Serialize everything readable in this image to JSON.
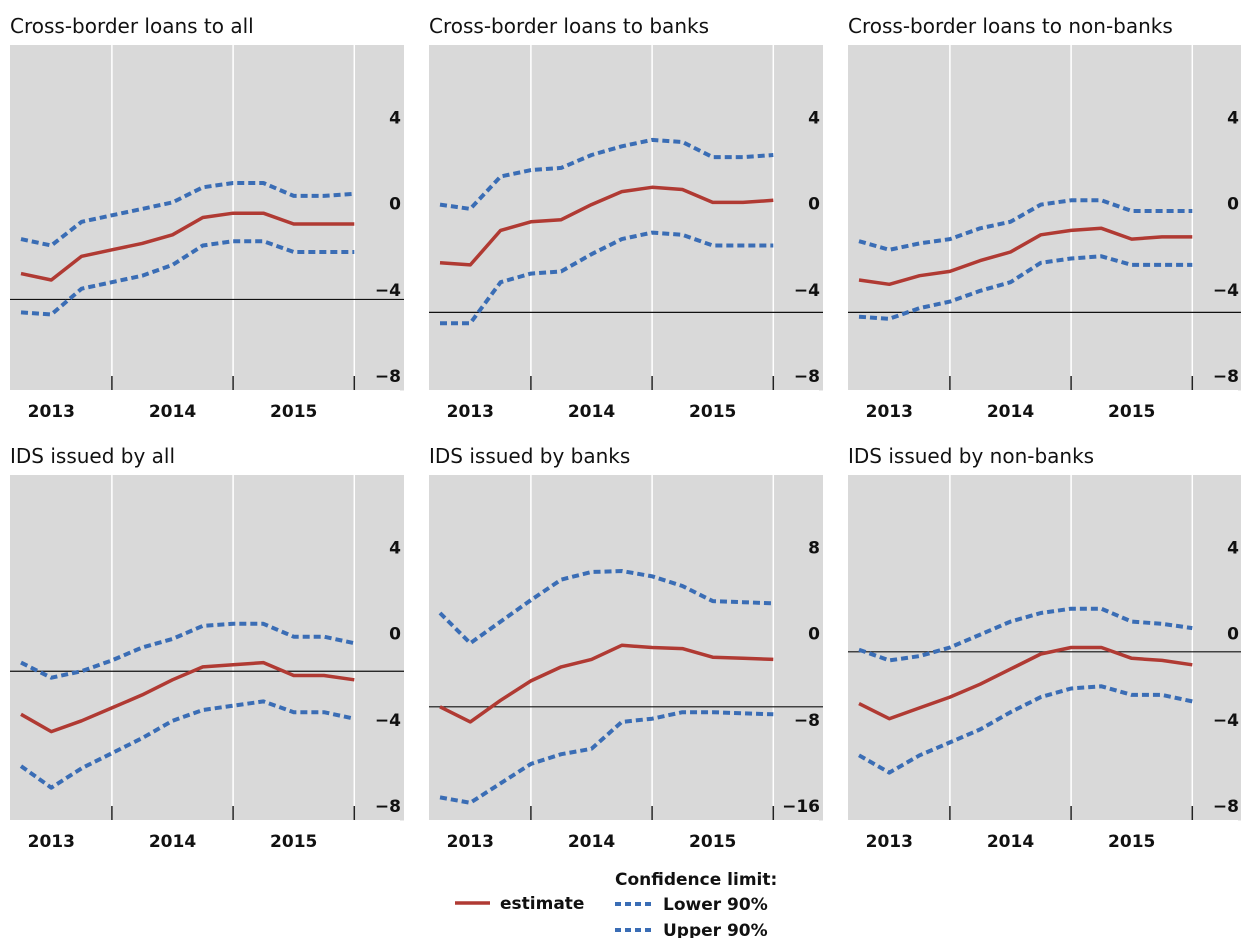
{
  "chart_data": [
    {
      "type": "line",
      "title": "Cross-border loans to all",
      "categories": [
        null,
        "2013",
        null,
        null,
        null,
        "2014",
        null,
        null,
        null,
        "2015",
        null,
        null
      ],
      "ylim": [
        -8,
        8
      ],
      "yticks": [
        {
          "value": -8,
          "label": "−8"
        },
        {
          "value": -4,
          "label": "−4"
        },
        0,
        4
      ],
      "reference_line": -3.8,
      "series": [
        {
          "name": "estimate",
          "color": "#b03a33",
          "values": [
            -2.6,
            -2.9,
            -1.8,
            -1.5,
            -1.2,
            -0.8,
            0,
            0.2,
            0.2,
            -0.3,
            -0.3,
            -0.3
          ]
        },
        {
          "name": "Lower 90%",
          "color": "#3a6db5",
          "values": [
            -4.4,
            -4.5,
            -3.3,
            -3.0,
            -2.7,
            -2.2,
            -1.3,
            -1.1,
            -1.1,
            -1.6,
            -1.6,
            -1.6
          ]
        },
        {
          "name": "Upper 90%",
          "color": "#3a6db5",
          "values": [
            -1.0,
            -1.3,
            -0.2,
            0.1,
            0.4,
            0.7,
            1.4,
            1.6,
            1.6,
            1.0,
            1.0,
            1.1
          ]
        }
      ]
    },
    {
      "type": "line",
      "title": "Cross-border loans to banks",
      "categories": [
        null,
        "2013",
        null,
        null,
        null,
        "2014",
        null,
        null,
        null,
        "2015",
        null,
        null
      ],
      "ylim": [
        -8,
        8
      ],
      "yticks": [
        {
          "value": -8,
          "label": "−8"
        },
        {
          "value": -4,
          "label": "−4"
        },
        0,
        4
      ],
      "reference_line": -4.4,
      "series": [
        {
          "name": "estimate",
          "color": "#b03a33",
          "values": [
            -2.1,
            -2.2,
            -0.6,
            -0.2,
            -0.1,
            0.6,
            1.2,
            1.4,
            1.3,
            0.7,
            0.7,
            0.8
          ]
        },
        {
          "name": "Lower 90%",
          "color": "#3a6db5",
          "values": [
            -4.9,
            -4.9,
            -3.0,
            -2.6,
            -2.5,
            -1.7,
            -1.0,
            -0.7,
            -0.8,
            -1.3,
            -1.3,
            -1.3
          ]
        },
        {
          "name": "Upper 90%",
          "color": "#3a6db5",
          "values": [
            0.6,
            0.4,
            1.9,
            2.2,
            2.3,
            2.9,
            3.3,
            3.6,
            3.5,
            2.8,
            2.8,
            2.9
          ]
        }
      ]
    },
    {
      "type": "line",
      "title": "Cross-border loans to non-banks",
      "categories": [
        null,
        "2013",
        null,
        null,
        null,
        "2014",
        null,
        null,
        null,
        "2015",
        null,
        null
      ],
      "ylim": [
        -8,
        8
      ],
      "yticks": [
        {
          "value": -8,
          "label": "−8"
        },
        {
          "value": -4,
          "label": "−4"
        },
        0,
        4
      ],
      "reference_line": -4.4,
      "series": [
        {
          "name": "estimate",
          "color": "#b03a33",
          "values": [
            -2.9,
            -3.1,
            -2.7,
            -2.5,
            -2.0,
            -1.6,
            -0.8,
            -0.6,
            -0.5,
            -1.0,
            -0.9,
            -0.9
          ]
        },
        {
          "name": "Lower 90%",
          "color": "#3a6db5",
          "values": [
            -4.6,
            -4.7,
            -4.2,
            -3.9,
            -3.4,
            -3.0,
            -2.1,
            -1.9,
            -1.8,
            -2.2,
            -2.2,
            -2.2
          ]
        },
        {
          "name": "Upper 90%",
          "color": "#3a6db5",
          "values": [
            -1.1,
            -1.5,
            -1.2,
            -1.0,
            -0.5,
            -0.2,
            0.6,
            0.8,
            0.8,
            0.3,
            0.3,
            0.3
          ]
        }
      ]
    },
    {
      "type": "line",
      "title": "IDS issued by all",
      "categories": [
        null,
        "2013",
        null,
        null,
        null,
        "2014",
        null,
        null,
        null,
        "2015",
        null,
        null
      ],
      "ylim": [
        -8,
        8
      ],
      "yticks": [
        {
          "value": -8,
          "label": "−8"
        },
        {
          "value": -4,
          "label": "−4"
        },
        0,
        4
      ],
      "reference_line": -1.1,
      "series": [
        {
          "name": "estimate",
          "color": "#b03a33",
          "values": [
            -3.1,
            -3.9,
            -3.4,
            -2.8,
            -2.2,
            -1.5,
            -0.9,
            -0.8,
            -0.7,
            -1.3,
            -1.3,
            -1.5
          ]
        },
        {
          "name": "Lower 90%",
          "color": "#3a6db5",
          "values": [
            -5.5,
            -6.5,
            -5.6,
            -4.9,
            -4.2,
            -3.4,
            -2.9,
            -2.7,
            -2.5,
            -3.0,
            -3.0,
            -3.3
          ]
        },
        {
          "name": "Upper 90%",
          "color": "#3a6db5",
          "values": [
            -0.7,
            -1.4,
            -1.1,
            -0.6,
            0,
            0.4,
            1.0,
            1.1,
            1.1,
            0.5,
            0.5,
            0.2
          ]
        }
      ]
    },
    {
      "type": "line",
      "title": "IDS issued by banks",
      "categories": [
        null,
        "2013",
        null,
        null,
        null,
        "2014",
        null,
        null,
        null,
        "2015",
        null,
        null
      ],
      "ylim": [
        -16,
        16
      ],
      "yticks": [
        {
          "value": -16,
          "label": "−16"
        },
        {
          "value": -8,
          "label": "−8"
        },
        0,
        8
      ],
      "reference_line": -5.5,
      "series": [
        {
          "name": "estimate",
          "color": "#b03a33",
          "values": [
            -5.5,
            -6.9,
            -4.9,
            -3.1,
            -1.8,
            -1.1,
            0.2,
            0,
            -0.1,
            -0.9,
            -1.0,
            -1.1
          ]
        },
        {
          "name": "Lower 90%",
          "color": "#3a6db5",
          "values": [
            -13.9,
            -14.4,
            -12.6,
            -10.8,
            -9.9,
            -9.4,
            -6.9,
            -6.6,
            -6.0,
            -6.0,
            -6.1,
            -6.2
          ]
        },
        {
          "name": "Upper 90%",
          "color": "#3a6db5",
          "values": [
            3.2,
            0.4,
            2.4,
            4.4,
            6.3,
            7.0,
            7.1,
            6.6,
            5.7,
            4.3,
            4.2,
            4.1
          ]
        }
      ]
    },
    {
      "type": "line",
      "title": "IDS issued by non-banks",
      "categories": [
        null,
        "2013",
        null,
        null,
        null,
        "2014",
        null,
        null,
        null,
        "2015",
        null,
        null
      ],
      "ylim": [
        -8,
        8
      ],
      "yticks": [
        {
          "value": -8,
          "label": "−8"
        },
        {
          "value": -4,
          "label": "−4"
        },
        0,
        4
      ],
      "reference_line": -0.2,
      "series": [
        {
          "name": "estimate",
          "color": "#b03a33",
          "values": [
            -2.6,
            -3.3,
            -2.8,
            -2.3,
            -1.7,
            -1.0,
            -0.3,
            0,
            0,
            -0.5,
            -0.6,
            -0.8
          ]
        },
        {
          "name": "Lower 90%",
          "color": "#3a6db5",
          "values": [
            -5.0,
            -5.8,
            -5.0,
            -4.4,
            -3.8,
            -3.0,
            -2.3,
            -1.9,
            -1.8,
            -2.2,
            -2.2,
            -2.5
          ]
        },
        {
          "name": "Upper 90%",
          "color": "#3a6db5",
          "values": [
            -0.1,
            -0.6,
            -0.4,
            0,
            0.6,
            1.2,
            1.6,
            1.8,
            1.8,
            1.2,
            1.1,
            0.9
          ]
        }
      ]
    }
  ],
  "legend_title": "Confidence limit:"
}
